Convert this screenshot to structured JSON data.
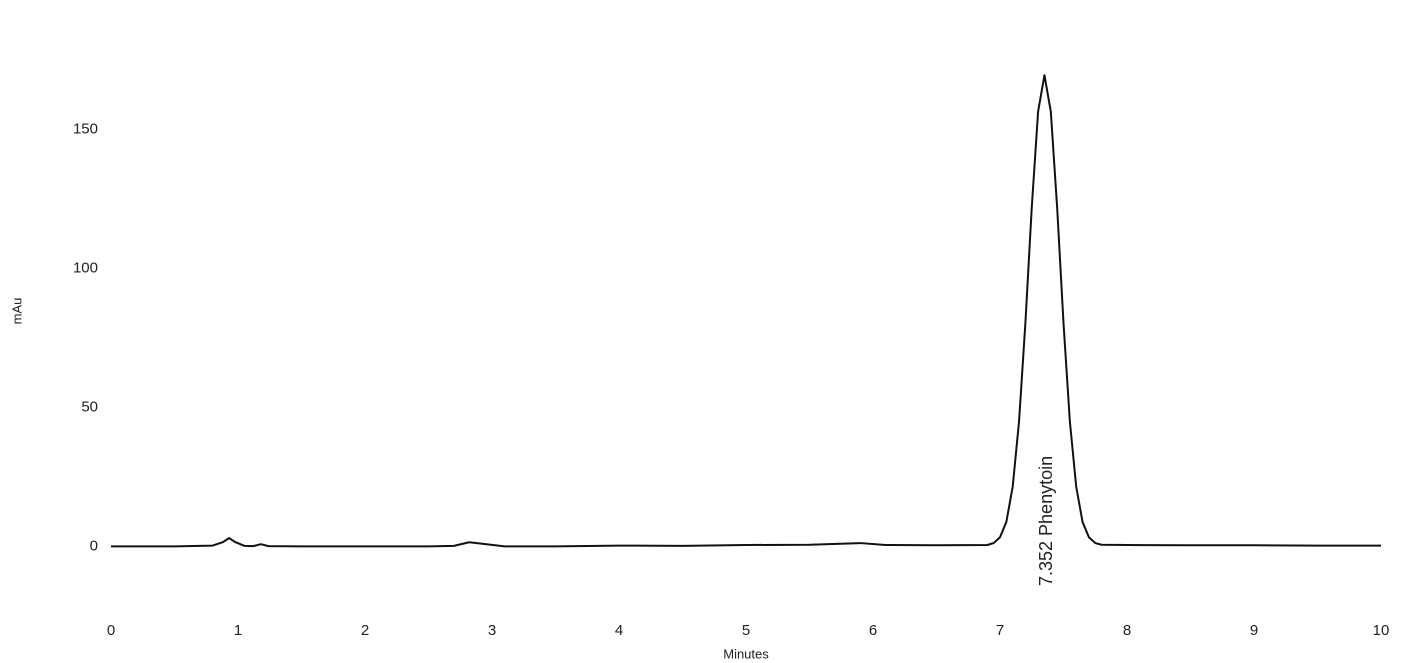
{
  "chart_data": {
    "type": "line",
    "xlabel": "Minutes",
    "ylabel": "mAu",
    "annotation": "7.352  Phenytoin",
    "color": "#111111",
    "x": [
      0,
      0.5,
      0.8,
      0.88,
      0.93,
      0.98,
      1.05,
      1.12,
      1.18,
      1.24,
      1.5,
      2,
      2.5,
      2.7,
      2.82,
      2.95,
      3.1,
      3.5,
      4,
      4.5,
      5,
      5.5,
      5.9,
      6.1,
      6.5,
      6.9,
      6.95,
      7.0,
      7.05,
      7.1,
      7.15,
      7.2,
      7.25,
      7.3,
      7.35,
      7.4,
      7.45,
      7.5,
      7.55,
      7.6,
      7.65,
      7.7,
      7.75,
      7.8,
      8,
      8.5,
      9,
      9.5,
      10
    ],
    "values": [
      0,
      0,
      0.3,
      1.5,
      3,
      1.5,
      0.2,
      0.1,
      0.8,
      0.1,
      0,
      0,
      0,
      0.2,
      1.5,
      0.8,
      0,
      0,
      0.3,
      0.2,
      0.5,
      0.6,
      1.2,
      0.5,
      0.4,
      0.5,
      1.2,
      3.3,
      8.8,
      21.5,
      45,
      80.4,
      121.9,
      156.4,
      169.5,
      156.4,
      121.9,
      80.4,
      45,
      21.5,
      8.8,
      3.3,
      1.2,
      0.6,
      0.5,
      0.4,
      0.4,
      0.3,
      0.3
    ],
    "xlim": [
      0,
      10
    ],
    "xticks": [
      0,
      1,
      2,
      3,
      4,
      5,
      6,
      7,
      8,
      9,
      10
    ],
    "ylim": [
      -20,
      180
    ],
    "yticks": [
      0,
      50,
      100,
      150
    ],
    "grid": false
  }
}
